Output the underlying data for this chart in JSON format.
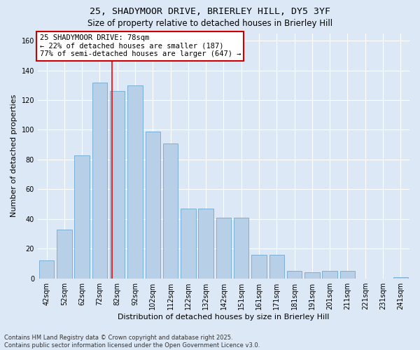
{
  "title1": "25, SHADYMOOR DRIVE, BRIERLEY HILL, DY5 3YF",
  "title2": "Size of property relative to detached houses in Brierley Hill",
  "xlabel": "Distribution of detached houses by size in Brierley Hill",
  "ylabel": "Number of detached properties",
  "categories": [
    "42sqm",
    "52sqm",
    "62sqm",
    "72sqm",
    "82sqm",
    "92sqm",
    "102sqm",
    "112sqm",
    "122sqm",
    "132sqm",
    "142sqm",
    "151sqm",
    "161sqm",
    "171sqm",
    "181sqm",
    "191sqm",
    "201sqm",
    "211sqm",
    "221sqm",
    "231sqm",
    "241sqm"
  ],
  "values": [
    12,
    33,
    83,
    132,
    126,
    130,
    99,
    91,
    47,
    47,
    41,
    41,
    16,
    16,
    5,
    4,
    5,
    5,
    0,
    0,
    1
  ],
  "bar_color": "#b8cfe8",
  "bar_edge_color": "#7aafd4",
  "bg_color": "#dce8f5",
  "red_line_x": 3.7,
  "annotation_text": "25 SHADYMOOR DRIVE: 78sqm\n← 22% of detached houses are smaller (187)\n77% of semi-detached houses are larger (647) →",
  "annotation_box_facecolor": "#ffffff",
  "annotation_box_edgecolor": "#cc0000",
  "ylim": [
    0,
    165
  ],
  "yticks": [
    0,
    20,
    40,
    60,
    80,
    100,
    120,
    140,
    160
  ],
  "footer1": "Contains HM Land Registry data © Crown copyright and database right 2025.",
  "footer2": "Contains public sector information licensed under the Open Government Licence v3.0.",
  "title1_fontsize": 9.5,
  "title2_fontsize": 8.5,
  "ylabel_fontsize": 8,
  "xlabel_fontsize": 8,
  "tick_fontsize": 7,
  "footer_fontsize": 6,
  "ann_fontsize": 7.5,
  "bar_width": 0.85
}
